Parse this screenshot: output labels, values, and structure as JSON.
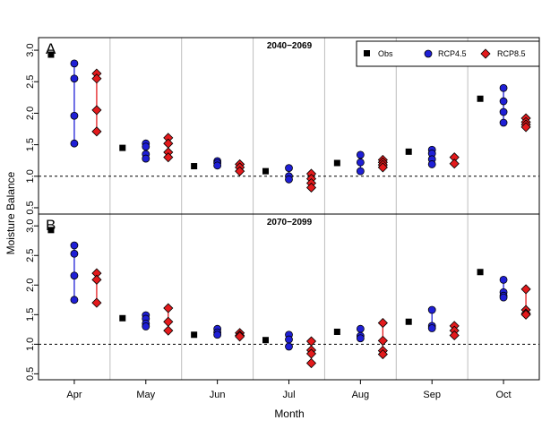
{
  "chart_data": {
    "type": "scatter",
    "xlabel": "Month",
    "ylabel": "Moisture Balance",
    "categories": [
      "Apr",
      "May",
      "Jun",
      "Jul",
      "Aug",
      "Sep",
      "Oct"
    ],
    "ylim": [
      0.4,
      3.2
    ],
    "yticks": [
      "0.5",
      "1.0",
      "1.5",
      "2.0",
      "2.5",
      "3.0"
    ],
    "reference_line": 1.0,
    "legend": {
      "placement": "top-right",
      "entries": [
        {
          "name": "Obs",
          "marker": "square",
          "color": "#000000"
        },
        {
          "name": "RCP4.5",
          "marker": "circle",
          "color": "#1f1fd6"
        },
        {
          "name": "RCP8.5",
          "marker": "diamond",
          "color": "#e31a1c"
        }
      ]
    },
    "panels": [
      {
        "letter": "A",
        "period": "2040−2069",
        "obs": [
          2.93,
          1.45,
          1.16,
          1.08,
          1.21,
          1.39,
          2.23
        ],
        "rcp45": [
          [
            2.79,
            2.55,
            1.96,
            1.52
          ],
          [
            1.52,
            1.47,
            1.35,
            1.28
          ],
          [
            1.24,
            1.21,
            1.17
          ],
          [
            1.13,
            1.0,
            0.95
          ],
          [
            1.34,
            1.22,
            1.08
          ],
          [
            1.42,
            1.36,
            1.27,
            1.19
          ],
          [
            2.4,
            2.19,
            2.02,
            1.85
          ]
        ],
        "rcp85": [
          [
            2.63,
            2.55,
            2.05,
            1.71
          ],
          [
            1.61,
            1.52,
            1.38,
            1.3
          ],
          [
            1.19,
            1.14,
            1.08
          ],
          [
            1.04,
            0.96,
            0.89,
            0.82
          ],
          [
            1.26,
            1.22,
            1.18,
            1.14
          ],
          [
            1.3,
            1.2
          ],
          [
            1.92,
            1.86,
            1.82,
            1.78
          ]
        ]
      },
      {
        "letter": "B",
        "period": "2070−2099",
        "obs": [
          2.93,
          1.44,
          1.16,
          1.07,
          1.21,
          1.38,
          2.22
        ],
        "rcp45": [
          [
            2.67,
            2.53,
            2.16,
            1.75
          ],
          [
            1.49,
            1.43,
            1.35,
            1.3
          ],
          [
            1.26,
            1.2,
            1.16
          ],
          [
            1.16,
            1.08,
            0.96
          ],
          [
            1.26,
            1.14,
            1.1
          ],
          [
            1.58,
            1.31,
            1.27
          ],
          [
            2.09,
            1.88,
            1.82,
            1.79
          ]
        ],
        "rcp85": [
          [
            2.2,
            2.09,
            1.7
          ],
          [
            1.61,
            1.38,
            1.23
          ],
          [
            1.19,
            1.15,
            1.13
          ],
          [
            1.05,
            0.9,
            0.84,
            0.68
          ],
          [
            1.36,
            1.06,
            0.89,
            0.83
          ],
          [
            1.31,
            1.23,
            1.15
          ],
          [
            1.93,
            1.58,
            1.52,
            1.5
          ]
        ]
      }
    ]
  }
}
